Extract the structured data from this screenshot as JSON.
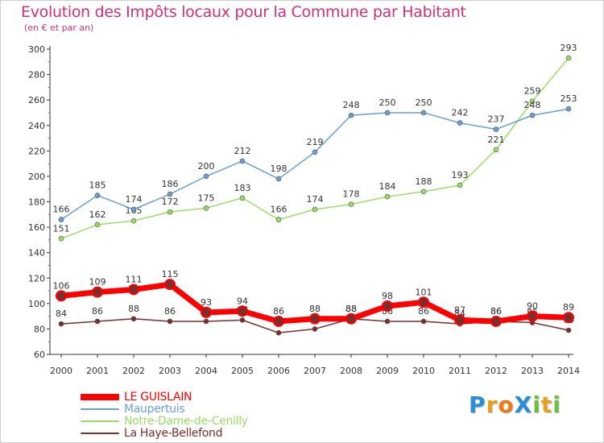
{
  "title": "Evolution des Impôts locaux pour la Commune par Habitant",
  "subtitle": "(en € et par an)",
  "logo": {
    "text": "ProXiti",
    "letters": [
      "P",
      "r",
      "o",
      "X",
      "i",
      "t",
      "i"
    ],
    "colors": [
      "#2a8fd8",
      "#e8a020",
      "#f07a18",
      "#2a8fd8",
      "#6cc040",
      "#e8a020",
      "#6cc040"
    ]
  },
  "chart_data": {
    "type": "line",
    "x": [
      "2000",
      "2001",
      "2002",
      "2003",
      "2004",
      "2005",
      "2006",
      "2007",
      "2008",
      "2009",
      "2010",
      "2011",
      "2012",
      "2013",
      "2014"
    ],
    "ylim": [
      60,
      300
    ],
    "yticks": [
      60,
      80,
      100,
      120,
      140,
      160,
      180,
      200,
      220,
      240,
      260,
      280,
      300
    ],
    "grid": false,
    "legend_position": "bottom-left",
    "series": [
      {
        "name": "La Haye-Bellefond",
        "color": "#7a2e2e",
        "values": [
          84,
          86,
          88,
          86,
          86,
          87,
          77,
          80,
          88,
          86,
          86,
          84,
          86,
          85,
          79
        ],
        "labels": [
          "84",
          "86",
          "88",
          "86",
          "86",
          "87",
          "77",
          "80",
          "88",
          "86",
          "86",
          "84",
          "86",
          "85",
          "79"
        ]
      },
      {
        "name": "Notre-Dame-de-Cenilly",
        "color": "#99dd66",
        "values": [
          151,
          162,
          165,
          172,
          175,
          183,
          166,
          174,
          178,
          184,
          188,
          193,
          221,
          259,
          293
        ],
        "labels": [
          "151",
          "162",
          "165",
          "172",
          "175",
          "183",
          "166",
          "174",
          "178",
          "184",
          "188",
          "193",
          "221",
          "259",
          "293"
        ]
      },
      {
        "name": "Maupertuis",
        "color": "#6a9fd0",
        "values": [
          166,
          185,
          174,
          186,
          200,
          212,
          198,
          219,
          248,
          250,
          250,
          242,
          237,
          248,
          253
        ],
        "labels": [
          "166",
          "185",
          "174",
          "186",
          "200",
          "212",
          "198",
          "219",
          "248",
          "250",
          "250",
          "242",
          "237",
          "248",
          "253"
        ]
      },
      {
        "name": "LE GUISLAIN",
        "color": "#ff0000",
        "values": [
          106,
          109,
          111,
          115,
          93,
          94,
          86,
          88,
          88,
          98,
          101,
          87,
          86,
          90,
          89
        ],
        "labels": [
          "106",
          "109",
          "111",
          "115",
          "93",
          "94",
          "86",
          "88",
          "88",
          "98",
          "101",
          "87",
          "86",
          "90",
          "89"
        ]
      }
    ],
    "legend": [
      {
        "name": "LE GUISLAIN",
        "color": "#ff0000"
      },
      {
        "name": "Maupertuis",
        "color": "#6a9fd0"
      },
      {
        "name": "Notre-Dame-de-Cenilly",
        "color": "#99dd66"
      },
      {
        "name": "La Haye-Bellefond",
        "color": "#7a2e2e"
      }
    ]
  }
}
